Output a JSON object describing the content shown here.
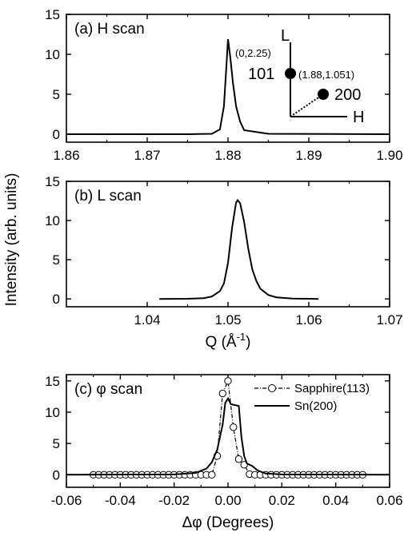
{
  "ylabel": "Intensity (arb. units)",
  "chart_data": [
    {
      "type": "line",
      "panel_label": "(a) H scan",
      "xlabel": "",
      "xlim": [
        1.86,
        1.9
      ],
      "ylim": [
        -1,
        15
      ],
      "xticks": [
        "1.86",
        "1.87",
        "1.88",
        "1.89",
        "1.90"
      ],
      "yticks": [
        "0",
        "5",
        "10",
        "15"
      ],
      "series": [
        {
          "x": [
            1.86,
            1.875,
            1.878,
            1.879,
            1.8795,
            1.8798,
            1.88,
            1.8803,
            1.8806,
            1.881,
            1.8815,
            1.882,
            1.885,
            1.9
          ],
          "y": [
            0,
            0,
            0.05,
            0.6,
            3.5,
            8.5,
            11.9,
            9.5,
            6.5,
            3.5,
            1.6,
            0.5,
            0.05,
            0
          ]
        }
      ],
      "inset": {
        "axis_labels": [
          "L",
          "H"
        ],
        "points": [
          {
            "label": "101",
            "coord": "(1.88,1.051)"
          },
          {
            "label": "200",
            "coord": ""
          }
        ],
        "origin_label": "(0,2.25)"
      }
    },
    {
      "type": "line",
      "panel_label": "(b) L scan",
      "xlabel": "Q (Å",
      "xlabel_sup": "-1",
      "xlabel_end": ")",
      "xlim": [
        1.03,
        1.07
      ],
      "ylim": [
        -1,
        15
      ],
      "xticks": [
        "1.04",
        "1.05",
        "1.06",
        "1.07"
      ],
      "yticks": [
        "0",
        "5",
        "10",
        "15"
      ],
      "series": [
        {
          "x": [
            1.0415,
            1.045,
            1.047,
            1.048,
            1.049,
            1.0495,
            1.05,
            1.0505,
            1.051,
            1.0512,
            1.0515,
            1.052,
            1.0525,
            1.053,
            1.0535,
            1.054,
            1.055,
            1.056,
            1.058,
            1.0612
          ],
          "y": [
            0,
            0.02,
            0.1,
            0.3,
            1.0,
            2.0,
            4.6,
            9.0,
            12.3,
            12.6,
            12.2,
            9.8,
            6.5,
            3.8,
            2.3,
            1.3,
            0.5,
            0.2,
            0.05,
            0
          ]
        }
      ]
    },
    {
      "type": "line",
      "panel_label": "(c) φ scan",
      "xlabel": "Δφ (Degrees)",
      "xlim": [
        -0.06,
        0.06
      ],
      "ylim": [
        -2,
        16
      ],
      "xticks": [
        "-0.06",
        "-0.04",
        "-0.02",
        "0.00",
        "0.02",
        "0.04",
        "0.06"
      ],
      "yticks": [
        "0",
        "5",
        "10",
        "15"
      ],
      "series": [
        {
          "name": "Sapphire(113)",
          "marker": "open-circle",
          "x": [
            -0.05,
            -0.048,
            -0.046,
            -0.044,
            -0.042,
            -0.04,
            -0.038,
            -0.036,
            -0.034,
            -0.032,
            -0.03,
            -0.028,
            -0.026,
            -0.024,
            -0.022,
            -0.02,
            -0.018,
            -0.016,
            -0.014,
            -0.012,
            -0.01,
            -0.008,
            -0.006,
            -0.004,
            -0.002,
            0.0,
            0.002,
            0.004,
            0.006,
            0.008,
            0.01,
            0.012,
            0.014,
            0.016,
            0.018,
            0.02,
            0.022,
            0.024,
            0.026,
            0.028,
            0.03,
            0.032,
            0.034,
            0.036,
            0.038,
            0.04,
            0.042,
            0.044,
            0.046,
            0.048,
            0.05
          ],
          "y": [
            0,
            0,
            0,
            0,
            0,
            0,
            0,
            0,
            0,
            0,
            0,
            0,
            0,
            0,
            0,
            0,
            0,
            0,
            0,
            0,
            0,
            0,
            0,
            3.0,
            13.0,
            15.0,
            7.6,
            2.5,
            1.6,
            0.1,
            0,
            0,
            0,
            0,
            0,
            0,
            0,
            0,
            0,
            0,
            0,
            0,
            0,
            0,
            0,
            0,
            0,
            0,
            0,
            0,
            0
          ]
        },
        {
          "name": "Sn(200)",
          "marker": "none",
          "x": [
            -0.06,
            -0.02,
            -0.012,
            -0.008,
            -0.006,
            -0.004,
            -0.002,
            -0.001,
            0.0,
            0.001,
            0.002,
            0.004,
            0.005,
            0.006,
            0.007,
            0.009,
            0.011,
            0.014,
            0.02,
            0.06
          ],
          "y": [
            0,
            0.05,
            0.3,
            1.0,
            2.0,
            4.0,
            8.0,
            11.5,
            12.2,
            11.3,
            11.2,
            11.0,
            6.0,
            3.0,
            1.8,
            1.4,
            0.7,
            0.2,
            0.05,
            0
          ]
        }
      ]
    }
  ]
}
